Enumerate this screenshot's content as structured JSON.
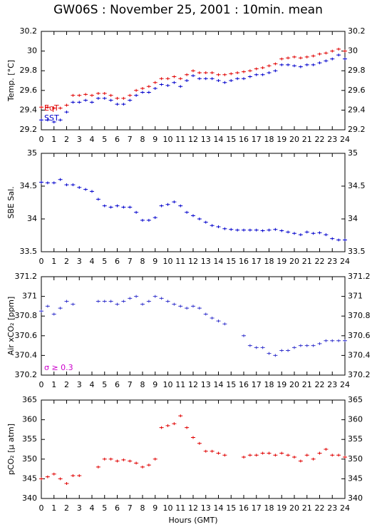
{
  "title": "GW06S : November 25, 2001 : 10min. mean",
  "x_label": "Hours (GMT)",
  "chart_data": [
    {
      "type": "scatter",
      "y_label": "Temp. [°C]",
      "legend": "lower left",
      "xlim": [
        0,
        24
      ],
      "xticks": [
        0,
        1,
        2,
        3,
        4,
        5,
        6,
        7,
        8,
        9,
        10,
        11,
        12,
        13,
        14,
        15,
        16,
        17,
        18,
        19,
        20,
        21,
        22,
        23,
        24
      ],
      "ylim": [
        29.2,
        30.2
      ],
      "yticks": [
        29.2,
        29.4,
        29.6,
        29.8,
        30,
        30.2
      ],
      "x": [
        0,
        0.5,
        1,
        1.5,
        2,
        2.5,
        3,
        3.5,
        4,
        4.5,
        5,
        5.5,
        6,
        6.5,
        7,
        7.5,
        8,
        8.5,
        9,
        9.5,
        10,
        10.5,
        11,
        11.5,
        12,
        12.5,
        13,
        13.5,
        14,
        14.5,
        15,
        15.5,
        16,
        16.5,
        17,
        17.5,
        18,
        18.5,
        19,
        19.5,
        20,
        20.5,
        21,
        21.5,
        22,
        22.5,
        23,
        23.5,
        24
      ],
      "series": [
        {
          "name": "EqT",
          "color": "#e00000",
          "values": [
            29.43,
            29.43,
            29.42,
            29.42,
            29.45,
            29.55,
            29.55,
            29.56,
            29.55,
            29.57,
            29.57,
            29.55,
            29.52,
            29.52,
            29.55,
            29.6,
            29.62,
            29.64,
            29.68,
            29.72,
            29.72,
            29.74,
            29.72,
            29.76,
            29.8,
            29.78,
            29.78,
            29.78,
            29.76,
            29.76,
            29.77,
            29.78,
            29.79,
            29.8,
            29.82,
            29.83,
            29.85,
            29.87,
            29.92,
            29.93,
            29.94,
            29.93,
            29.94,
            29.95,
            29.97,
            29.98,
            30,
            30.02,
            30
          ]
        },
        {
          "name": "SST",
          "color": "#0000cc",
          "values": [
            29.3,
            29.3,
            29.28,
            29.3,
            29.38,
            29.48,
            29.48,
            29.5,
            29.48,
            29.52,
            29.52,
            29.5,
            29.46,
            29.46,
            29.5,
            29.55,
            29.58,
            29.58,
            29.62,
            29.66,
            29.65,
            29.68,
            29.64,
            29.7,
            29.75,
            29.72,
            29.72,
            29.72,
            29.7,
            29.68,
            29.7,
            29.72,
            29.72,
            29.74,
            29.76,
            29.76,
            29.78,
            29.8,
            29.86,
            29.86,
            29.85,
            29.84,
            29.86,
            29.86,
            29.88,
            29.9,
            29.92,
            29.96,
            29.92
          ]
        }
      ]
    },
    {
      "type": "scatter",
      "y_label": "SBE Sal.",
      "xlim": [
        0,
        24
      ],
      "xticks": [
        0,
        1,
        2,
        3,
        4,
        5,
        6,
        7,
        8,
        9,
        10,
        11,
        12,
        13,
        14,
        15,
        16,
        17,
        18,
        19,
        20,
        21,
        22,
        23,
        24
      ],
      "ylim": [
        33.5,
        35
      ],
      "yticks": [
        33.5,
        34,
        34.5,
        35
      ],
      "x": [
        0,
        0.5,
        1,
        1.5,
        2,
        2.5,
        3,
        3.5,
        4,
        4.5,
        5,
        5.5,
        6,
        6.5,
        7,
        7.5,
        8,
        8.5,
        9,
        9.5,
        10,
        10.5,
        11,
        11.5,
        12,
        12.5,
        13,
        13.5,
        14,
        14.5,
        15,
        15.5,
        16,
        16.5,
        17,
        17.5,
        18,
        18.5,
        19,
        19.5,
        20,
        20.5,
        21,
        21.5,
        22,
        22.5,
        23,
        23.5,
        24
      ],
      "series": [
        {
          "color": "#0000cc",
          "values": [
            34.56,
            34.55,
            34.55,
            34.6,
            34.52,
            34.52,
            34.48,
            34.45,
            34.42,
            34.3,
            34.2,
            34.18,
            34.2,
            34.18,
            34.18,
            34.1,
            33.98,
            33.98,
            34.02,
            34.2,
            34.22,
            34.26,
            34.2,
            34.1,
            34.05,
            34,
            33.95,
            33.9,
            33.88,
            33.85,
            33.84,
            33.83,
            33.83,
            33.83,
            33.83,
            33.82,
            33.83,
            33.84,
            33.82,
            33.8,
            33.78,
            33.76,
            33.8,
            33.78,
            33.79,
            33.76,
            33.7,
            33.68,
            33.68
          ]
        }
      ]
    },
    {
      "type": "scatter",
      "y_label": "Air xCO₂ [ppm]",
      "annotation": {
        "text": "σ ≥ 0.3",
        "color": "#cc00cc"
      },
      "xlim": [
        0,
        24
      ],
      "xticks": [
        0,
        1,
        2,
        3,
        4,
        5,
        6,
        7,
        8,
        9,
        10,
        11,
        12,
        13,
        14,
        15,
        16,
        17,
        18,
        19,
        20,
        21,
        22,
        23,
        24
      ],
      "ylim": [
        370.2,
        371.2
      ],
      "yticks": [
        370.2,
        370.4,
        370.6,
        370.8,
        371,
        371.2
      ],
      "x": [
        0,
        0.5,
        1,
        1.5,
        2,
        2.5,
        3,
        3.5,
        4,
        4.5,
        5,
        5.5,
        6,
        6.5,
        7,
        7.5,
        8,
        8.5,
        9,
        9.5,
        10,
        10.5,
        11,
        11.5,
        12,
        12.5,
        13,
        13.5,
        14,
        14.5,
        15,
        15.5,
        16,
        16.5,
        17,
        17.5,
        18,
        18.5,
        19,
        19.5,
        20,
        20.5,
        21,
        21.5,
        22,
        22.5,
        23,
        23.5,
        24
      ],
      "series": [
        {
          "color": "#3333cc",
          "values": [
            370.85,
            370.9,
            370.82,
            370.88,
            370.95,
            370.92,
            null,
            null,
            null,
            370.95,
            370.95,
            370.95,
            370.92,
            370.95,
            370.98,
            371,
            370.92,
            370.95,
            371,
            370.98,
            370.95,
            370.92,
            370.9,
            370.88,
            370.9,
            370.88,
            370.82,
            370.78,
            370.75,
            370.72,
            null,
            null,
            370.6,
            370.5,
            370.48,
            370.48,
            370.42,
            370.4,
            370.45,
            370.45,
            370.48,
            370.5,
            370.5,
            370.5,
            370.52,
            370.55,
            370.55,
            370.55,
            370.55
          ]
        }
      ]
    },
    {
      "type": "scatter",
      "y_label": "pCO₂ [μ atm]",
      "xlim": [
        0,
        24
      ],
      "xticks": [
        0,
        1,
        2,
        3,
        4,
        5,
        6,
        7,
        8,
        9,
        10,
        11,
        12,
        13,
        14,
        15,
        16,
        17,
        18,
        19,
        20,
        21,
        22,
        23,
        24
      ],
      "ylim": [
        340,
        365
      ],
      "yticks": [
        340,
        345,
        350,
        355,
        360,
        365
      ],
      "x": [
        0,
        0.5,
        1,
        1.5,
        2,
        2.5,
        3,
        3.5,
        4,
        4.5,
        5,
        5.5,
        6,
        6.5,
        7,
        7.5,
        8,
        8.5,
        9,
        9.5,
        10,
        10.5,
        11,
        11.5,
        12,
        12.5,
        13,
        13.5,
        14,
        14.5,
        15,
        15.5,
        16,
        16.5,
        17,
        17.5,
        18,
        18.5,
        19,
        19.5,
        20,
        20.5,
        21,
        21.5,
        22,
        22.5,
        23,
        23.5,
        24
      ],
      "series": [
        {
          "color": "#e00000",
          "values": [
            345,
            345.5,
            346.2,
            345,
            343.8,
            345.8,
            345.8,
            null,
            null,
            348,
            350,
            350,
            349.5,
            349.8,
            349.5,
            349,
            348,
            348.5,
            350,
            358,
            358.5,
            359,
            361,
            358,
            355.5,
            354,
            352,
            352,
            351.5,
            351,
            null,
            null,
            350.5,
            351,
            351,
            351.5,
            351.5,
            351,
            351.5,
            351,
            350.5,
            349.5,
            351,
            350,
            351.5,
            352.5,
            351,
            351,
            350.5
          ]
        }
      ]
    }
  ]
}
